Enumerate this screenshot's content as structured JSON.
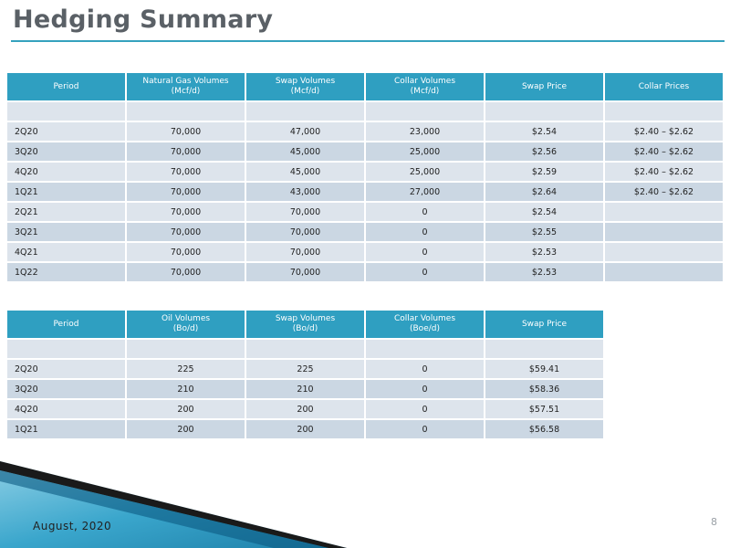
{
  "title": "Hedging Summary",
  "gas_table": {
    "headers": [
      {
        "l1": "Period",
        "l2": ""
      },
      {
        "l1": "Natural Gas Volumes",
        "l2": "(Mcf/d)"
      },
      {
        "l1": "Swap Volumes",
        "l2": "(Mcf/d)"
      },
      {
        "l1": "Collar Volumes",
        "l2": "(Mcf/d)"
      },
      {
        "l1": "Swap Price",
        "l2": ""
      },
      {
        "l1": "Collar Prices",
        "l2": ""
      }
    ],
    "rows": [
      [
        "2Q20",
        "70,000",
        "47,000",
        "23,000",
        "$2.54",
        "$2.40 – $2.62"
      ],
      [
        "3Q20",
        "70,000",
        "45,000",
        "25,000",
        "$2.56",
        "$2.40 – $2.62"
      ],
      [
        "4Q20",
        "70,000",
        "45,000",
        "25,000",
        "$2.59",
        "$2.40 – $2.62"
      ],
      [
        "1Q21",
        "70,000",
        "43,000",
        "27,000",
        "$2.64",
        "$2.40 – $2.62"
      ],
      [
        "2Q21",
        "70,000",
        "70,000",
        "0",
        "$2.54",
        ""
      ],
      [
        "3Q21",
        "70,000",
        "70,000",
        "0",
        "$2.55",
        ""
      ],
      [
        "4Q21",
        "70,000",
        "70,000",
        "0",
        "$2.53",
        ""
      ],
      [
        "1Q22",
        "70,000",
        "70,000",
        "0",
        "$2.53",
        ""
      ]
    ]
  },
  "oil_table": {
    "headers": [
      {
        "l1": "Period",
        "l2": ""
      },
      {
        "l1": "Oil Volumes",
        "l2": "(Bo/d)"
      },
      {
        "l1": "Swap Volumes",
        "l2": "(Bo/d)"
      },
      {
        "l1": "Collar Volumes",
        "l2": "(Boe/d)"
      },
      {
        "l1": "Swap Price",
        "l2": ""
      }
    ],
    "rows": [
      [
        "2Q20",
        "225",
        "225",
        "0",
        "$59.41"
      ],
      [
        "3Q20",
        "210",
        "210",
        "0",
        "$58.36"
      ],
      [
        "4Q20",
        "200",
        "200",
        "0",
        "$57.51"
      ],
      [
        "1Q21",
        "200",
        "200",
        "0",
        "$56.58"
      ]
    ]
  },
  "footer": {
    "date": "August, 2020",
    "page_number": "8"
  },
  "colors": {
    "accent": "#35a2be",
    "header_fill": "#2f9fc1",
    "row_light": "#dde4ec",
    "row_dark": "#cbd7e3"
  }
}
